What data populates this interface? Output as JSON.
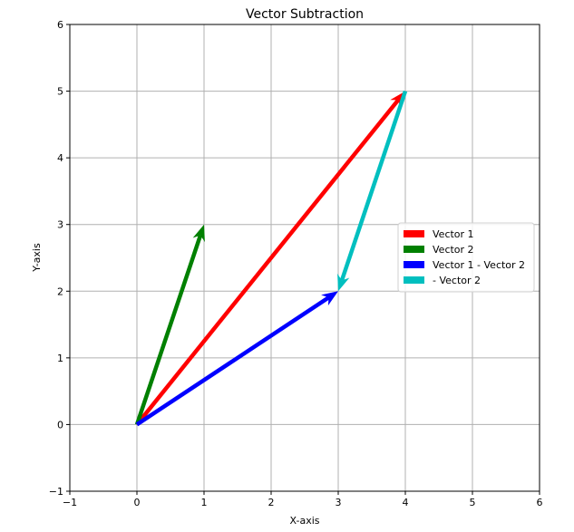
{
  "chart_data": {
    "type": "quiver",
    "title": "Vector Subtraction",
    "xlabel": "X-axis",
    "ylabel": "Y-axis",
    "xlim": [
      -1,
      6
    ],
    "ylim": [
      -1,
      6
    ],
    "xticks": [
      -1,
      0,
      1,
      2,
      3,
      4,
      5,
      6
    ],
    "yticks": [
      -1,
      0,
      1,
      2,
      3,
      4,
      5,
      6
    ],
    "grid": true,
    "legend_position": "center-right",
    "series": [
      {
        "name": "Vector 1",
        "color": "#ff0000",
        "start": [
          0,
          0
        ],
        "end": [
          4,
          5
        ]
      },
      {
        "name": "Vector 2",
        "color": "#008000",
        "start": [
          0,
          0
        ],
        "end": [
          1,
          3
        ]
      },
      {
        "name": "Vector 1 - Vector 2",
        "color": "#0000ff",
        "start": [
          0,
          0
        ],
        "end": [
          3,
          2
        ]
      },
      {
        "name": "- Vector 2",
        "color": "#00bfbf",
        "start": [
          4,
          5
        ],
        "end": [
          3,
          2
        ]
      }
    ]
  }
}
